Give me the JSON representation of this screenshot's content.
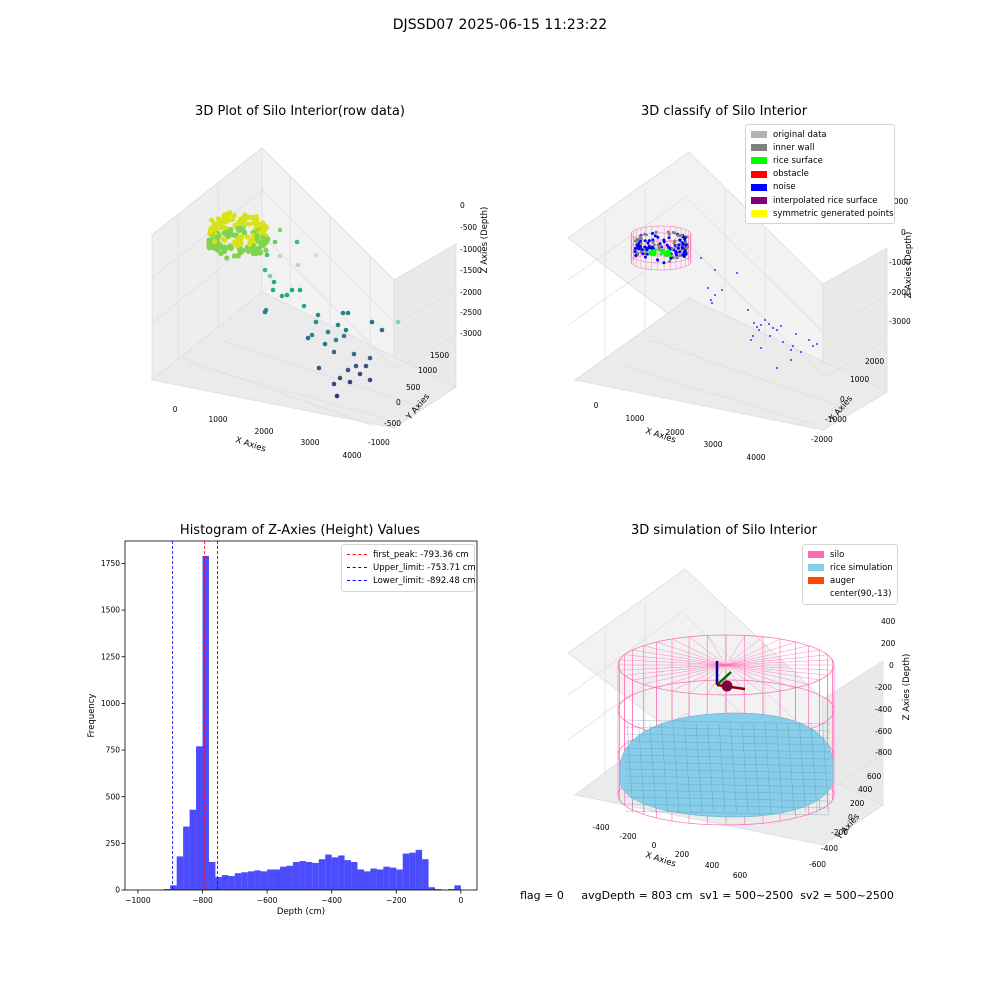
{
  "suptitle": "DJSSD07 2025-06-15 11:23:22",
  "panels": {
    "raw": {
      "title": "3D Plot of Silo Interior(row data)",
      "xlabel": "X Axies",
      "ylabel": "Y Axies",
      "zlabel": "Z Axies (Depth)",
      "xticks": [
        "0",
        "1000",
        "2000",
        "3000",
        "4000"
      ],
      "yticks": [
        "-1000",
        "-500",
        "0",
        "500",
        "1000",
        "1500"
      ],
      "zticks": [
        "0",
        "-500",
        "-1000",
        "-1500",
        "-2000",
        "-2500",
        "-3000"
      ]
    },
    "classify": {
      "title": "3D classify of Silo Interior",
      "xlabel": "X Axies",
      "ylabel": "Y Axies",
      "zlabel": "Z Axies (Depth)",
      "xticks": [
        "0",
        "1000",
        "2000",
        "3000",
        "4000"
      ],
      "yticks": [
        "-2000",
        "-1000",
        "0",
        "1000",
        "2000"
      ],
      "zticks": [
        "1000",
        "0",
        "-1000",
        "-2000",
        "-3000"
      ],
      "legend": [
        {
          "label": "original data",
          "color": "#b4b4b4"
        },
        {
          "label": "inner wall",
          "color": "#808080"
        },
        {
          "label": "rice surface",
          "color": "#00ff00"
        },
        {
          "label": "obstacle",
          "color": "#ff0000"
        },
        {
          "label": "noise",
          "color": "#0000ff"
        },
        {
          "label": "interpolated rice surface",
          "color": "#800080"
        },
        {
          "label": "symmetric generated points",
          "color": "#ffff00"
        }
      ]
    },
    "simulation": {
      "title": "3D simulation of Silo Interior",
      "xlabel": "X Axies",
      "ylabel": "Y Axies",
      "zlabel": "Z Axies (Depth)",
      "xticks": [
        "-400",
        "-200",
        "0",
        "200",
        "400",
        "600"
      ],
      "yticks": [
        "-600",
        "-400",
        "-200",
        "0",
        "200",
        "400",
        "600"
      ],
      "zticks": [
        "400",
        "200",
        "0",
        "-200",
        "-400",
        "-600",
        "-800"
      ],
      "legend": [
        {
          "label": "silo",
          "color": "#ff69b4"
        },
        {
          "label": "rice simulation",
          "color": "#87ceeb"
        },
        {
          "label": "auger",
          "color": "#ff4500"
        },
        {
          "label": "center(90,-13)",
          "color": ""
        }
      ]
    }
  },
  "chart_data": {
    "type": "bar",
    "title": "Histogram of Z-Axies (Height) Values",
    "xlabel": "Depth (cm)",
    "ylabel": "Frequency",
    "xlim": [
      -1040,
      50
    ],
    "ylim": [
      0,
      1870
    ],
    "xticks": [
      -1000,
      -800,
      -600,
      -400,
      -200,
      0
    ],
    "yticks": [
      0,
      250,
      500,
      750,
      1000,
      1250,
      1500,
      1750
    ],
    "bin_width": 20,
    "bin_starts": [
      -920,
      -900,
      -880,
      -860,
      -840,
      -820,
      -800,
      -780,
      -760,
      -740,
      -720,
      -700,
      -680,
      -660,
      -640,
      -620,
      -600,
      -580,
      -560,
      -540,
      -520,
      -500,
      -480,
      -460,
      -440,
      -420,
      -400,
      -380,
      -360,
      -340,
      -320,
      -300,
      -280,
      -260,
      -240,
      -220,
      -200,
      -180,
      -160,
      -140,
      -120,
      -100,
      -80,
      -60,
      -40,
      -20,
      0
    ],
    "values": [
      5,
      25,
      180,
      340,
      430,
      770,
      1790,
      150,
      70,
      80,
      75,
      90,
      95,
      100,
      105,
      100,
      110,
      110,
      125,
      130,
      150,
      155,
      150,
      145,
      165,
      190,
      175,
      185,
      160,
      150,
      110,
      100,
      115,
      110,
      125,
      120,
      110,
      195,
      200,
      215,
      165,
      15,
      5,
      0,
      5,
      25,
      0
    ],
    "color": "#0000ff",
    "vlines": [
      {
        "label": "first_peak: -793.36 cm",
        "x": -793.36,
        "color": "#ff0000"
      },
      {
        "label": "Upper_limit: -753.71 cm",
        "x": -753.71,
        "color": "#0000ff"
      },
      {
        "label": "Lower_limit: -892.48 cm",
        "x": -892.48,
        "color": "#0000ff"
      }
    ],
    "legend_position": "top-right"
  },
  "footer": {
    "flag": "flag = 0",
    "avg": "avgDepth = 803 cm",
    "sv1": "sv1 = 500~2500",
    "sv2": "sv2 = 500~2500"
  }
}
